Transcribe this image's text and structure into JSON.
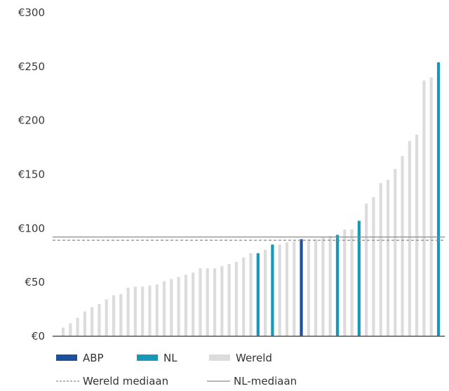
{
  "chart_data": {
    "type": "bar",
    "ylim": [
      0,
      300
    ],
    "y_ticks": [
      {
        "value": 0,
        "label": "€0"
      },
      {
        "value": 50,
        "label": "€50"
      },
      {
        "value": 100,
        "label": "€100"
      },
      {
        "value": 150,
        "label": "€150"
      },
      {
        "value": 200,
        "label": "€200"
      },
      {
        "value": 250,
        "label": "€250"
      },
      {
        "value": 300,
        "label": "€300"
      }
    ],
    "grid": false,
    "legend_position": "bottom-left",
    "colors": {
      "ABP": "#1e4f9c",
      "NL": "#1798b8",
      "Wereld": "#dcdcdc",
      "median_line": "#8c8c8c"
    },
    "bars": [
      {
        "value": 8,
        "group": "Wereld"
      },
      {
        "value": 12,
        "group": "Wereld"
      },
      {
        "value": 17,
        "group": "Wereld"
      },
      {
        "value": 23,
        "group": "Wereld"
      },
      {
        "value": 27,
        "group": "Wereld"
      },
      {
        "value": 30,
        "group": "Wereld"
      },
      {
        "value": 34,
        "group": "Wereld"
      },
      {
        "value": 38,
        "group": "Wereld"
      },
      {
        "value": 39,
        "group": "Wereld"
      },
      {
        "value": 45,
        "group": "Wereld"
      },
      {
        "value": 46,
        "group": "Wereld"
      },
      {
        "value": 46,
        "group": "Wereld"
      },
      {
        "value": 47,
        "group": "Wereld"
      },
      {
        "value": 48,
        "group": "Wereld"
      },
      {
        "value": 51,
        "group": "Wereld"
      },
      {
        "value": 53,
        "group": "Wereld"
      },
      {
        "value": 55,
        "group": "Wereld"
      },
      {
        "value": 57,
        "group": "Wereld"
      },
      {
        "value": 59,
        "group": "Wereld"
      },
      {
        "value": 63,
        "group": "Wereld"
      },
      {
        "value": 63,
        "group": "Wereld"
      },
      {
        "value": 63,
        "group": "Wereld"
      },
      {
        "value": 65,
        "group": "Wereld"
      },
      {
        "value": 67,
        "group": "Wereld"
      },
      {
        "value": 69,
        "group": "Wereld"
      },
      {
        "value": 73,
        "group": "Wereld"
      },
      {
        "value": 77,
        "group": "Wereld"
      },
      {
        "value": 77,
        "group": "NL"
      },
      {
        "value": 80,
        "group": "Wereld"
      },
      {
        "value": 85,
        "group": "NL"
      },
      {
        "value": 85,
        "group": "Wereld"
      },
      {
        "value": 87,
        "group": "Wereld"
      },
      {
        "value": 88,
        "group": "Wereld"
      },
      {
        "value": 90,
        "group": "ABP"
      },
      {
        "value": 90,
        "group": "Wereld"
      },
      {
        "value": 90,
        "group": "Wereld"
      },
      {
        "value": 92,
        "group": "Wereld"
      },
      {
        "value": 93,
        "group": "Wereld"
      },
      {
        "value": 94,
        "group": "NL"
      },
      {
        "value": 99,
        "group": "Wereld"
      },
      {
        "value": 99,
        "group": "Wereld"
      },
      {
        "value": 107,
        "group": "NL"
      },
      {
        "value": 123,
        "group": "Wereld"
      },
      {
        "value": 129,
        "group": "Wereld"
      },
      {
        "value": 142,
        "group": "Wereld"
      },
      {
        "value": 145,
        "group": "Wereld"
      },
      {
        "value": 155,
        "group": "Wereld"
      },
      {
        "value": 167,
        "group": "Wereld"
      },
      {
        "value": 181,
        "group": "Wereld"
      },
      {
        "value": 187,
        "group": "Wereld"
      },
      {
        "value": 237,
        "group": "Wereld"
      },
      {
        "value": 240,
        "group": "Wereld"
      },
      {
        "value": 254,
        "group": "NL"
      }
    ],
    "medians": [
      {
        "name": "Wereld mediaan",
        "value": 89,
        "style": "dashed"
      },
      {
        "name": "NL-mediaan",
        "value": 92,
        "style": "solid"
      }
    ],
    "legend": [
      {
        "label": "ABP",
        "kind": "bar",
        "group": "ABP"
      },
      {
        "label": "NL",
        "kind": "bar",
        "group": "NL"
      },
      {
        "label": "Wereld",
        "kind": "bar",
        "group": "Wereld"
      },
      {
        "label": "Wereld mediaan",
        "kind": "line",
        "style": "dashed"
      },
      {
        "label": "NL-mediaan",
        "kind": "line",
        "style": "solid"
      }
    ]
  }
}
